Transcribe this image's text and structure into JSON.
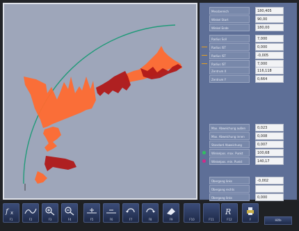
{
  "panel": {
    "top_rows": [
      {
        "label": "Messbereich",
        "value": "180,405"
      },
      {
        "label": "Winkel Start",
        "value": "90,00"
      },
      {
        "label": "Winkel Ende",
        "value": "180,00"
      }
    ],
    "radius_rows": [
      {
        "label": "Radius Soll",
        "value": "7,000",
        "marker": "none"
      },
      {
        "label": "Radius IST",
        "value": "0,000",
        "marker": "dash",
        "color": "#e6a020"
      },
      {
        "label": "Radius IST",
        "value": "-0,005",
        "marker": "dash",
        "color": "#e6a020"
      },
      {
        "label": "Radius IST",
        "value": "7,000",
        "marker": "dash",
        "color": "#e6a020"
      }
    ],
    "center_rows": [
      {
        "label": "Zentrum X",
        "value": "116,118"
      },
      {
        "label": "Zentrum Y",
        "value": "0,664"
      }
    ],
    "stat_rows": [
      {
        "label": "Max. Abweichung außen",
        "value": "0,023"
      },
      {
        "label": "Max. Abweichung innen",
        "value": "0,008"
      },
      {
        "label": "Standard Abweichung",
        "value": "0,007"
      }
    ],
    "pos_rows": [
      {
        "label": "Winkelpos. max. Punkt",
        "value": "100,68",
        "marker": "dot",
        "color": "#30c060"
      },
      {
        "label": "Winkelpos. min. Punkt",
        "value": "140,17",
        "marker": "dot",
        "color": "#d02a8a"
      }
    ],
    "bottom_rows": [
      {
        "label": "Übergang links",
        "value": "-0,002"
      },
      {
        "label": "Übergang rechts",
        "value": ""
      },
      {
        "label": "Übergang links",
        "value": "0,000"
      }
    ]
  },
  "toolbar": {
    "buttons": [
      {
        "name": "fx",
        "label": "F1",
        "icon": "function-icon"
      },
      {
        "name": "curve",
        "label": "F2",
        "icon": "curve-icon"
      },
      {
        "name": "zoom-in",
        "label": "F3",
        "icon": "zoom-in-icon"
      },
      {
        "name": "zoom-out",
        "label": "F4",
        "icon": "zoom-out-icon"
      },
      {
        "name": "add-point",
        "label": "F5",
        "icon": "add-point-icon"
      },
      {
        "name": "remove-point",
        "label": "F6",
        "icon": "remove-point-icon"
      },
      {
        "name": "rotate-left",
        "label": "F7",
        "icon": "rotate-left-icon"
      },
      {
        "name": "rotate-right",
        "label": "F8",
        "icon": "rotate-right-icon"
      },
      {
        "name": "eraser",
        "label": "F9",
        "icon": "eraser-icon"
      },
      {
        "name": "f10",
        "label": "F10",
        "icon": ""
      },
      {
        "name": "f11",
        "label": "F11",
        "icon": ""
      },
      {
        "name": "radius",
        "label": "F12",
        "icon": "radius-icon"
      },
      {
        "name": "print",
        "label": "F",
        "icon": "print-icon"
      }
    ],
    "help_label": "Hilfe"
  },
  "colors": {
    "arc": "#1f9a78",
    "profile_out": "#ff6a30",
    "profile_in": "#b01818",
    "plot_bg": "#9ea6ba",
    "panel_bg": "#5e6f97"
  }
}
